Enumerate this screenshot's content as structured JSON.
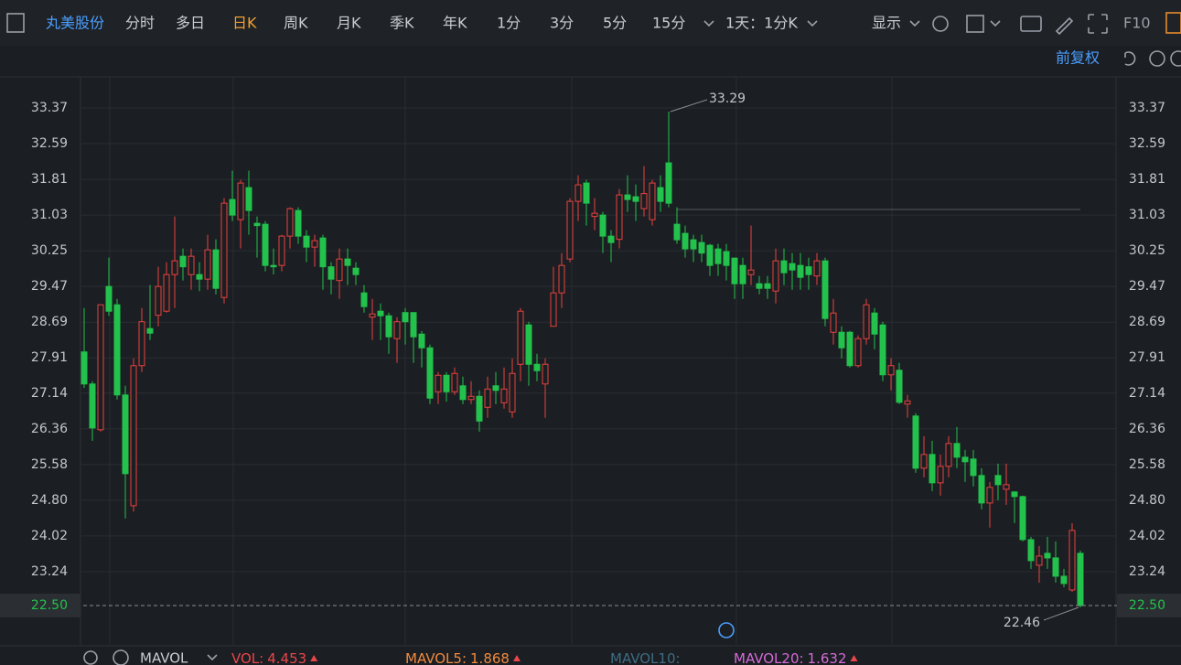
{
  "toolbar": {
    "stock": "丸美股份",
    "periods": [
      "分时",
      "多日",
      "日K",
      "周K",
      "月K",
      "季K",
      "年K",
      "1分",
      "3分",
      "5分",
      "15分"
    ],
    "active_period": 2,
    "range_select": "1天：1分K",
    "display": "显示",
    "f10": "F10",
    "adjust": "前复权"
  },
  "chart_data": {
    "type": "candlestick",
    "open": [
      28.04,
      27.34,
      26.34,
      29.47,
      29.07,
      27.1,
      24.68,
      27.74,
      28.55,
      28.84,
      28.93,
      29.73,
      30.13,
      29.73,
      29.73,
      29.63,
      30.27,
      29.23,
      31.37,
      30.93,
      31.63,
      30.85,
      30.83,
      29.93,
      29.93,
      30.57,
      31.13,
      30.57,
      30.33,
      30.53,
      29.9,
      29.6,
      30.07,
      29.87,
      29.33,
      28.8,
      28.93,
      28.83,
      28.33,
      28.9,
      28.9,
      28.43,
      28.13,
      27.17,
      27.53,
      27.17,
      27.3,
      27.0,
      27.07,
      26.83,
      27.3,
      26.93,
      26.73,
      27.77,
      28.63,
      27.77,
      27.34,
      28.6,
      29.33,
      30.07,
      31.33,
      31.73,
      31.0,
      31.03,
      30.57,
      30.5,
      31.47,
      31.43,
      31.17,
      30.93,
      31.63,
      32.17,
      30.83,
      30.63,
      30.49,
      30.43,
      30.37,
      30.29,
      30.23,
      30.09,
      29.93,
      29.73,
      29.53,
      29.53,
      29.37,
      30.03,
      29.97,
      29.93,
      29.9,
      29.7,
      30.03,
      28.47,
      28.47,
      28.47,
      27.74,
      28.33,
      28.89,
      28.63,
      27.54,
      27.64,
      26.9,
      26.64,
      25.5,
      25.8,
      25.18,
      25.54,
      26.04,
      25.74,
      25.7,
      25.34,
      24.74,
      25.34,
      25.04,
      24.98,
      24.88,
      23.94,
      23.38,
      23.64,
      23.54,
      23.14,
      22.84,
      23.64
    ],
    "high": [
      29.0,
      27.4,
      29.07,
      30.1,
      29.2,
      27.3,
      27.9,
      29.0,
      29.5,
      29.9,
      30.0,
      31.0,
      30.3,
      30.3,
      30.0,
      30.6,
      30.5,
      31.4,
      32.0,
      31.8,
      32.0,
      31.0,
      30.9,
      30.3,
      30.6,
      31.2,
      31.2,
      30.7,
      30.6,
      30.6,
      30.0,
      30.3,
      30.3,
      30.0,
      29.5,
      29.2,
      29.1,
      28.9,
      28.8,
      29.0,
      28.9,
      28.5,
      28.2,
      27.6,
      27.6,
      27.7,
      27.5,
      27.4,
      27.2,
      27.5,
      27.6,
      27.7,
      27.9,
      29.0,
      28.7,
      28.0,
      27.9,
      29.9,
      30.2,
      31.4,
      31.9,
      31.8,
      31.4,
      31.1,
      30.7,
      31.6,
      31.9,
      31.7,
      32.1,
      31.8,
      31.9,
      33.29,
      31.2,
      30.8,
      30.6,
      30.6,
      30.4,
      30.4,
      30.4,
      30.1,
      30.1,
      30.8,
      29.7,
      29.7,
      30.3,
      30.3,
      30.2,
      30.2,
      30.1,
      30.2,
      30.1,
      29.2,
      28.6,
      28.5,
      28.4,
      29.2,
      29.0,
      28.7,
      27.9,
      27.8,
      27.1,
      26.7,
      26.2,
      26.1,
      25.8,
      26.2,
      26.4,
      25.9,
      25.9,
      25.5,
      25.2,
      25.6,
      25.6,
      25.0,
      24.9,
      24.0,
      23.8,
      24.0,
      23.9,
      23.3,
      24.3,
      23.7
    ],
    "low": [
      27.25,
      26.1,
      26.3,
      28.83,
      27.0,
      24.4,
      24.55,
      27.6,
      28.3,
      28.6,
      28.9,
      29.0,
      29.6,
      29.4,
      29.37,
      29.4,
      29.3,
      29.1,
      30.9,
      30.3,
      30.6,
      30.1,
      29.8,
      29.73,
      29.8,
      30.3,
      30.4,
      30.0,
      29.9,
      29.4,
      29.3,
      29.2,
      29.5,
      29.5,
      28.9,
      28.3,
      28.3,
      28.0,
      27.8,
      28.2,
      27.8,
      27.7,
      26.9,
      26.9,
      26.95,
      27.1,
      26.9,
      26.9,
      26.3,
      26.6,
      26.9,
      26.8,
      26.6,
      27.4,
      27.3,
      27.4,
      26.6,
      28.6,
      29.0,
      30.0,
      30.9,
      30.8,
      30.7,
      30.2,
      30.0,
      30.3,
      31.1,
      30.9,
      31.0,
      30.8,
      31.1,
      31.2,
      30.4,
      30.1,
      30.0,
      30.0,
      29.7,
      29.7,
      29.6,
      29.2,
      29.2,
      29.5,
      29.3,
      29.2,
      29.1,
      29.5,
      29.4,
      29.4,
      29.4,
      29.5,
      28.6,
      28.2,
      27.9,
      27.7,
      27.7,
      28.2,
      28.1,
      27.4,
      27.2,
      26.9,
      26.6,
      25.4,
      25.3,
      25.0,
      24.9,
      25.3,
      25.5,
      25.2,
      25.1,
      24.6,
      24.2,
      24.8,
      24.7,
      24.3,
      23.9,
      23.3,
      23.0,
      23.3,
      23.0,
      22.9,
      22.8,
      22.46
    ],
    "close": [
      27.34,
      26.38,
      29.07,
      28.93,
      27.1,
      25.38,
      27.74,
      28.7,
      28.45,
      29.47,
      29.73,
      30.03,
      29.9,
      30.13,
      29.63,
      30.27,
      29.43,
      31.29,
      31.03,
      31.73,
      31.13,
      30.8,
      29.93,
      29.9,
      30.57,
      31.17,
      30.57,
      30.33,
      30.47,
      29.9,
      29.63,
      30.07,
      29.93,
      29.73,
      29.03,
      28.87,
      28.83,
      28.37,
      28.7,
      28.7,
      28.37,
      28.13,
      27.03,
      27.53,
      27.17,
      27.57,
      27.0,
      27.07,
      26.53,
      27.23,
      27.2,
      27.23,
      27.57,
      28.93,
      27.77,
      27.63,
      27.77,
      29.33,
      29.93,
      31.33,
      31.69,
      31.29,
      31.07,
      30.57,
      30.43,
      31.47,
      31.37,
      31.33,
      31.5,
      31.73,
      31.33,
      31.29,
      30.49,
      30.29,
      30.29,
      30.2,
      29.93,
      29.97,
      29.93,
      29.53,
      29.53,
      29.83,
      29.43,
      29.43,
      30.03,
      29.77,
      29.83,
      29.67,
      29.73,
      30.03,
      28.77,
      28.89,
      28.13,
      27.74,
      28.33,
      29.07,
      28.43,
      27.54,
      27.74,
      26.94,
      26.97,
      25.5,
      25.8,
      25.18,
      25.54,
      26.04,
      25.74,
      25.64,
      25.34,
      24.74,
      25.08,
      25.14,
      25.14,
      24.88,
      23.94,
      23.48,
      23.58,
      23.54,
      23.14,
      22.98,
      24.14,
      22.5
    ],
    "up_color": "#e8413f",
    "down_color": "#22c24c",
    "ylim": [
      21.74,
      34.03
    ],
    "yticks": [
      33.37,
      32.59,
      31.81,
      31.03,
      30.25,
      29.47,
      28.69,
      27.91,
      27.14,
      26.36,
      25.58,
      {
        "value": 24.8,
        "label": "24.80"
      },
      24.02,
      23.24
    ],
    "last_price": {
      "value": 22.5,
      "label": "22.50"
    },
    "high_label": 33.29,
    "low_label": 22.46
  },
  "indicators": {
    "name": "MAVOL",
    "items": [
      {
        "name": "VOL:",
        "value": 4.453,
        "color": "#e8464a"
      },
      {
        "name": "MAVOL5:",
        "value": 1.868,
        "color": "#f08a3e"
      },
      {
        "name": "MAVOL10:",
        "color": "#3e6c82"
      },
      {
        "name": "MAVOL20:",
        "value": 1.632,
        "color": "#d56ad8"
      }
    ]
  }
}
